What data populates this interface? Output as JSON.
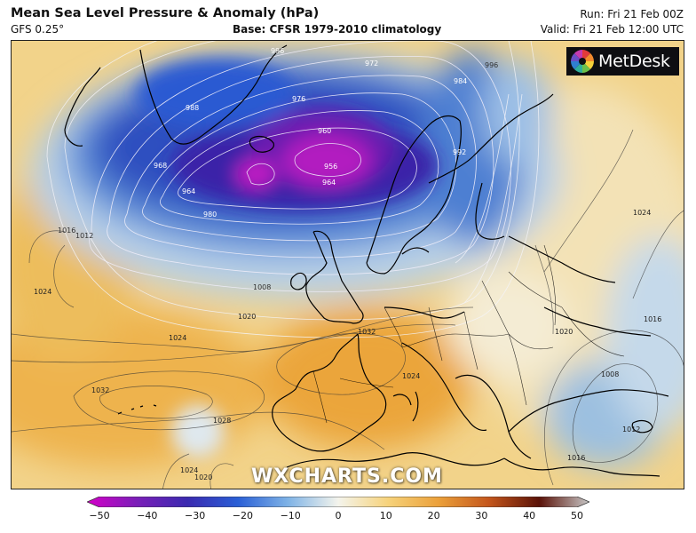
{
  "header": {
    "title": "Mean Sea Level Pressure & Anomaly (hPa)",
    "model": "GFS 0.25°",
    "base": "Base: CFSR 1979-2010 climatology",
    "run": "Run: Fri 21 Feb 00Z",
    "valid": "Valid: Fri 21 Feb 12:00 UTC"
  },
  "logo": {
    "text": "MetDesk"
  },
  "watermark": "WXCHARTS.COM",
  "colorbar": {
    "min": -50,
    "max": 50,
    "ticks": [
      "−50",
      "−40",
      "−30",
      "−20",
      "−10",
      "0",
      "10",
      "20",
      "30",
      "40",
      "50"
    ],
    "colors": [
      "#d400c8",
      "#7a1fb8",
      "#3a2ab0",
      "#2a5fd6",
      "#7fb3e6",
      "#f4f4ec",
      "#f6d27a",
      "#eba03a",
      "#c4561c",
      "#5a1208",
      "#c8c8c8"
    ]
  },
  "isobar_labels": [
    {
      "text": "972"
    },
    {
      "text": "960"
    },
    {
      "text": "956"
    },
    {
      "text": "964"
    },
    {
      "text": "968"
    },
    {
      "text": "964"
    },
    {
      "text": "976"
    },
    {
      "text": "980"
    },
    {
      "text": "984"
    },
    {
      "text": "988"
    },
    {
      "text": "992"
    },
    {
      "text": "996"
    },
    {
      "text": "996"
    },
    {
      "text": "1008"
    },
    {
      "text": "1012"
    },
    {
      "text": "1016"
    },
    {
      "text": "1020"
    },
    {
      "text": "1024"
    },
    {
      "text": "1024"
    },
    {
      "text": "1024"
    },
    {
      "text": "1028"
    },
    {
      "text": "1032"
    },
    {
      "text": "1032"
    },
    {
      "text": "1024"
    },
    {
      "text": "1020"
    },
    {
      "text": "1016"
    },
    {
      "text": "1008"
    },
    {
      "text": "1012"
    },
    {
      "text": "1016"
    },
    {
      "text": "1024"
    },
    {
      "text": "1024"
    },
    {
      "text": "1020"
    }
  ]
}
